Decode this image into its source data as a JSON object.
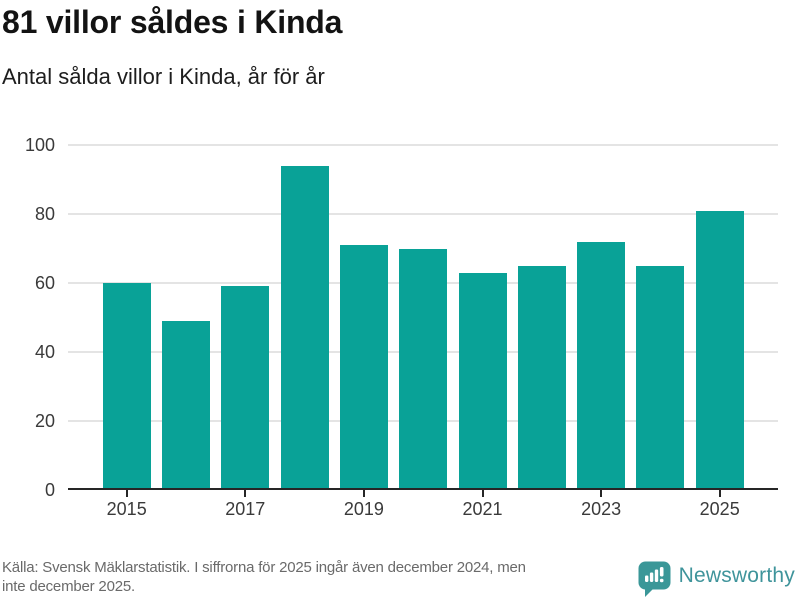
{
  "header": {
    "title": "81 villor såldes i Kinda",
    "subtitle": "Antal sålda villor i Kinda, år för år"
  },
  "chart_data": {
    "type": "bar",
    "title": "81 villor såldes i Kinda",
    "subtitle": "Antal sålda villor i Kinda, år för år",
    "categories": [
      "2015",
      "2016",
      "2017",
      "2018",
      "2019",
      "2020",
      "2021",
      "2022",
      "2023",
      "2024",
      "2025"
    ],
    "values": [
      60,
      49,
      59,
      94,
      71,
      70,
      63,
      65,
      72,
      65,
      81
    ],
    "xlabel": "",
    "ylabel": "",
    "ylim": [
      0,
      100
    ],
    "yticks": [
      0,
      20,
      40,
      60,
      80,
      100
    ],
    "xticks": [
      "2015",
      "2017",
      "2019",
      "2021",
      "2023",
      "2025"
    ],
    "grid": true,
    "legend": "none",
    "bar_color": "#09a297",
    "gridline_color": "#e4e4e4",
    "axis_color": "#262626"
  },
  "footer": {
    "source_line1": "Källa: Svensk Mäklarstatistik. I siffrorna för 2025 ingår även december 2024, men",
    "source_line2": "inte december 2025.",
    "brand_name": "Newsworthy",
    "brand_color": "#3f949b",
    "brand_icon": "bar-chart-speech-bubble-icon",
    "brand_icon_color": "#3a9798"
  }
}
